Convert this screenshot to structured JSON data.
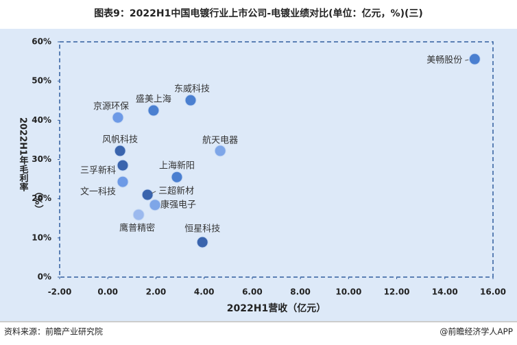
{
  "chart_data": {
    "type": "scatter",
    "title": "图表9：2022H1中国电镀行业上市公司-电镀业绩对比(单位：亿元，%)(三)",
    "x_label": "2022H1营收（亿元）",
    "y_label": "2022H1年毛利率",
    "y_label_unit": "（%）",
    "point_labels": [
      "美畅股份",
      "东威科技",
      "盛美上海",
      "京源环保",
      "航天电器",
      "风帆科技",
      "三孚新科",
      "上海新阳",
      "文一科技",
      "三超新材",
      "康强电子",
      "鹰普精密",
      "恒星科技"
    ],
    "x": [
      15.24,
      3.44,
      1.9,
      0.42,
      4.67,
      0.51,
      0.62,
      2.87,
      0.62,
      1.65,
      1.96,
      1.28,
      3.93
    ],
    "values": [
      55.6,
      45.1,
      42.5,
      40.7,
      32.2,
      32.2,
      28.5,
      25.5,
      24.3,
      21.0,
      18.4,
      15.9,
      8.9
    ],
    "colors": [
      "#4a7fd0",
      "#4a7fd0",
      "#4a7fd0",
      "#6d9ae6",
      "#7ea6e8",
      "#3a64ad",
      "#3a64ad",
      "#4a7fd0",
      "#6d9ae6",
      "#3a64ad",
      "#7ea6e8",
      "#9bb9ee",
      "#3a64ad"
    ],
    "xlim": [
      -2,
      16
    ],
    "xticks": [
      {
        "value": -2,
        "label": "-2.00"
      },
      {
        "value": 0,
        "label": "0.00"
      },
      {
        "value": 2,
        "label": "2.00"
      },
      {
        "value": 4,
        "label": "4.00"
      },
      {
        "value": 6,
        "label": "6.00"
      },
      {
        "value": 8,
        "label": "8.00"
      },
      {
        "value": 10,
        "label": "10.00"
      },
      {
        "value": 12,
        "label": "12.00"
      },
      {
        "value": 14,
        "label": "14.00"
      },
      {
        "value": 16,
        "label": "16.00"
      }
    ],
    "ylim": [
      0,
      60
    ],
    "yticks": [
      {
        "value": 0,
        "label": "0%"
      },
      {
        "value": 10,
        "label": "10%"
      },
      {
        "value": 20,
        "label": "20%"
      },
      {
        "value": 30,
        "label": "30%"
      },
      {
        "value": 40,
        "label": "40%"
      },
      {
        "value": 50,
        "label": "50%"
      },
      {
        "value": 60,
        "label": "60%"
      }
    ],
    "source": "资料来源：前瞻产业研究院",
    "credit": "@前瞻经济学人APP"
  }
}
